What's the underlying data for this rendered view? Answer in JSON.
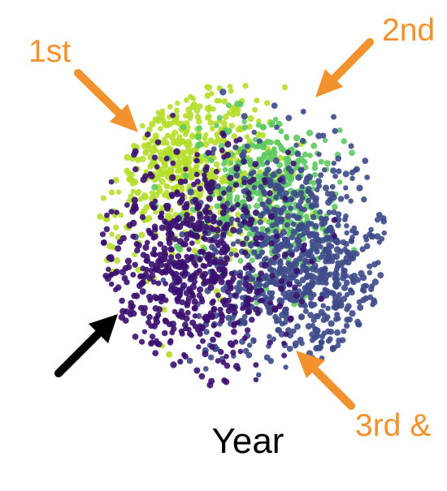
{
  "chart_data": {
    "type": "scatter",
    "xlabel": "Year",
    "title": "",
    "legend": "none",
    "grid": false,
    "colormap": [
      "#3b0f70",
      "#3e4a89",
      "#31688e",
      "#26828e",
      "#35b779",
      "#6ece58",
      "#b5de2b"
    ],
    "series": [
      {
        "name": "1st",
        "color": "#b5de2b",
        "center": [
          -0.45,
          0.55
        ],
        "spread": 0.35,
        "count": 650
      },
      {
        "name": "2nd",
        "color": "#5ec962",
        "center": [
          0.15,
          0.3
        ],
        "spread": 0.3,
        "count": 420
      },
      {
        "name": "3rd &",
        "color": "#3e4a89",
        "center": [
          0.45,
          -0.2
        ],
        "spread": 0.4,
        "count": 900
      },
      {
        "name": "",
        "color": "#3b0f70",
        "center": [
          -0.45,
          -0.25
        ],
        "spread": 0.4,
        "count": 700
      }
    ],
    "annotations": [
      {
        "text": "1st",
        "color": "#f2922e"
      },
      {
        "text": "2nd",
        "color": "#f2922e"
      },
      {
        "text": "3rd &",
        "color": "#f2922e"
      },
      {
        "text": "",
        "color": "#000000"
      }
    ]
  }
}
